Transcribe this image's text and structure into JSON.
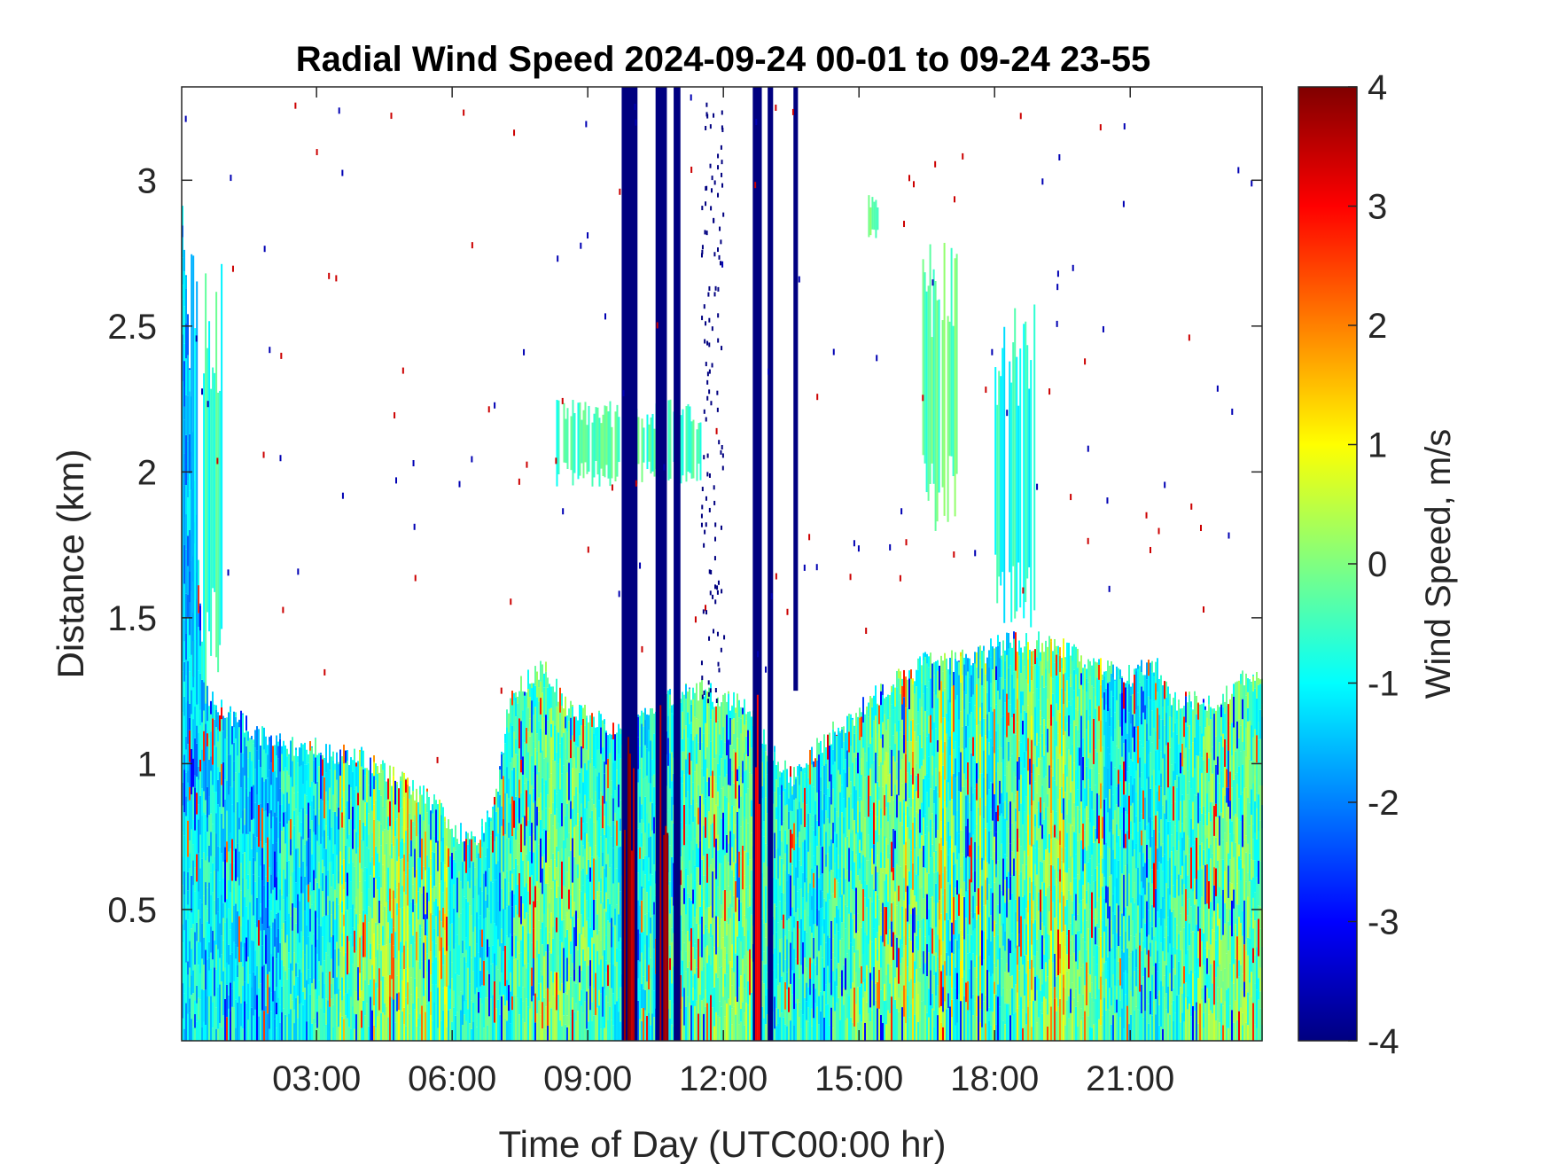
{
  "chart_data": {
    "type": "heatmap",
    "title": "Radial Wind Speed 2024-09-24 00-01 to 09-24 23-55",
    "xlabel": "Time of Day (UTC00:00 hr)",
    "ylabel": "Distance (km)",
    "colorbar_label": "Wind Speed, m/s",
    "xlim_hours": [
      0.0167,
      23.917
    ],
    "ylim_km": [
      0.05,
      3.32
    ],
    "clim": [
      -4,
      4
    ],
    "colormap": "jet",
    "x_ticks": [
      {
        "hour": 3,
        "label": "03:00"
      },
      {
        "hour": 6,
        "label": "06:00"
      },
      {
        "hour": 9,
        "label": "09:00"
      },
      {
        "hour": 12,
        "label": "12:00"
      },
      {
        "hour": 15,
        "label": "15:00"
      },
      {
        "hour": 18,
        "label": "18:00"
      },
      {
        "hour": 21,
        "label": "21:00"
      }
    ],
    "y_ticks": [
      {
        "km": 0.5,
        "label": "0.5"
      },
      {
        "km": 1,
        "label": "1"
      },
      {
        "km": 1.5,
        "label": "1.5"
      },
      {
        "km": 2,
        "label": "2"
      },
      {
        "km": 2.5,
        "label": "2.5"
      },
      {
        "km": 3,
        "label": "3"
      }
    ],
    "colorbar_ticks": [
      {
        "value": 4,
        "label": "4"
      },
      {
        "value": 3,
        "label": "3"
      },
      {
        "value": 2,
        "label": "2"
      },
      {
        "value": 1,
        "label": "1"
      },
      {
        "value": 0,
        "label": "0"
      },
      {
        "value": -1,
        "label": "-1"
      },
      {
        "value": -2,
        "label": "-2"
      },
      {
        "value": -3,
        "label": "-3"
      },
      {
        "value": -4,
        "label": "-4"
      }
    ],
    "data_top_km": [
      [
        0.02,
        2.9
      ],
      [
        0.5,
        1.25
      ],
      [
        1.0,
        1.18
      ],
      [
        1.5,
        1.12
      ],
      [
        2.0,
        1.08
      ],
      [
        2.5,
        1.06
      ],
      [
        3.0,
        1.05
      ],
      [
        3.5,
        1.03
      ],
      [
        4.0,
        1.02
      ],
      [
        4.5,
        0.98
      ],
      [
        5.0,
        0.92
      ],
      [
        5.5,
        0.88
      ],
      [
        6.0,
        0.78
      ],
      [
        6.5,
        0.72
      ],
      [
        7.0,
        0.9
      ],
      [
        7.2,
        1.2
      ],
      [
        7.5,
        1.26
      ],
      [
        8.0,
        1.33
      ],
      [
        8.5,
        1.2
      ],
      [
        9.0,
        1.17
      ],
      [
        9.5,
        1.13
      ],
      [
        9.8,
        1.1
      ],
      [
        10.5,
        1.18
      ],
      [
        11.0,
        1.25
      ],
      [
        11.5,
        1.25
      ],
      [
        12.0,
        1.22
      ],
      [
        12.5,
        1.2
      ],
      [
        13.0,
        1.05
      ],
      [
        13.5,
        0.95
      ],
      [
        14.0,
        1.05
      ],
      [
        14.5,
        1.12
      ],
      [
        15.0,
        1.18
      ],
      [
        15.5,
        1.25
      ],
      [
        16.0,
        1.3
      ],
      [
        16.5,
        1.35
      ],
      [
        17.0,
        1.35
      ],
      [
        17.5,
        1.36
      ],
      [
        18.0,
        1.4
      ],
      [
        18.5,
        1.42
      ],
      [
        19.0,
        1.42
      ],
      [
        19.5,
        1.4
      ],
      [
        20.0,
        1.35
      ],
      [
        20.5,
        1.32
      ],
      [
        21.0,
        1.3
      ],
      [
        21.5,
        1.35
      ],
      [
        22.0,
        1.2
      ],
      [
        22.5,
        1.22
      ],
      [
        23.0,
        1.22
      ],
      [
        23.5,
        1.3
      ],
      [
        23.917,
        1.3
      ]
    ],
    "low_speed_bands": [
      {
        "start_hour": 9.75,
        "end_hour": 10.1,
        "value": -4
      },
      {
        "start_hour": 10.5,
        "end_hour": 10.75,
        "value": -4
      },
      {
        "start_hour": 10.9,
        "end_hour": 11.05,
        "value": -4
      },
      {
        "start_hour": 12.65,
        "end_hour": 12.85,
        "value": -4
      },
      {
        "start_hour": 12.98,
        "end_hour": 13.1,
        "value": -4
      },
      {
        "start_hour": 13.55,
        "end_hour": 13.65,
        "value": -4,
        "min_km": 1.25
      }
    ],
    "high_speed_bands": [
      {
        "start_hour": 9.8,
        "end_hour": 10.05,
        "value": 4,
        "max_km": 1.1
      },
      {
        "start_hour": 10.55,
        "end_hour": 10.75,
        "value": 4,
        "max_km": 1.25
      },
      {
        "start_hour": 12.7,
        "end_hour": 12.82,
        "value": 3.5,
        "max_km": 1.3
      }
    ],
    "elevated_layers": [
      {
        "start_hour": 8.3,
        "end_hour": 11.5,
        "top_km": 2.25,
        "bottom_km": 1.95,
        "value": -0.5
      },
      {
        "start_hour": 16.4,
        "end_hour": 17.2,
        "top_km": 2.8,
        "bottom_km": 1.75,
        "value": -0.3
      },
      {
        "start_hour": 18.0,
        "end_hour": 18.9,
        "top_km": 2.6,
        "bottom_km": 1.45,
        "value": -0.8
      },
      {
        "start_hour": 15.2,
        "end_hour": 15.45,
        "top_km": 2.95,
        "bottom_km": 2.8,
        "value": -0.2
      },
      {
        "start_hour": 0.02,
        "end_hour": 0.35,
        "top_km": 2.85,
        "bottom_km": 1.2,
        "value": -1.4
      },
      {
        "start_hour": 0.45,
        "end_hour": 0.9,
        "top_km": 2.8,
        "bottom_km": 1.2,
        "value": -0.6
      }
    ]
  }
}
